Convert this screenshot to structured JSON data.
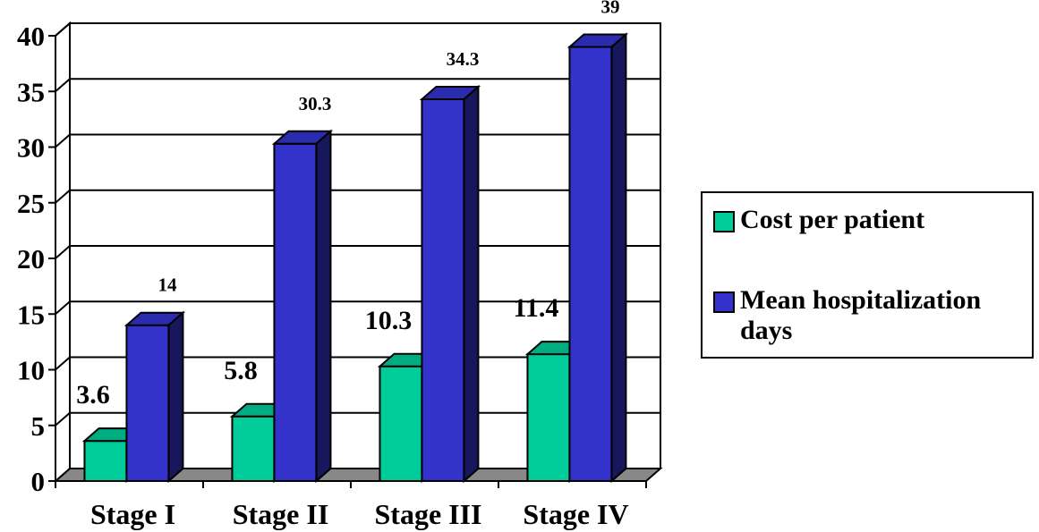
{
  "chart_data": {
    "type": "bar",
    "title": "",
    "xlabel": "",
    "ylabel": "",
    "ylim": [
      0,
      40
    ],
    "yticks": [
      0,
      5,
      10,
      15,
      20,
      25,
      30,
      35,
      40
    ],
    "grid": true,
    "three_d": true,
    "legend_position": "right",
    "categories": [
      "Stage I",
      "Stage II",
      "Stage III",
      "Stage IV"
    ],
    "series": [
      {
        "name": "Cost per patient",
        "color": "#00cc99",
        "values": [
          3.6,
          5.8,
          10.3,
          11.4
        ],
        "labels": [
          "3.6",
          "5.8",
          "10.3",
          "11.4"
        ]
      },
      {
        "name": "Mean hospitalization days",
        "color": "#3333cc",
        "values": [
          14,
          30.3,
          34.3,
          39
        ],
        "labels": [
          "14",
          "30.3",
          "34.3",
          "39"
        ]
      }
    ]
  },
  "legend": {
    "items": [
      {
        "label_line1": "Cost per patient",
        "label_line2": ""
      },
      {
        "label_line1": "Mean hospitalization",
        "label_line2": "days"
      }
    ]
  }
}
